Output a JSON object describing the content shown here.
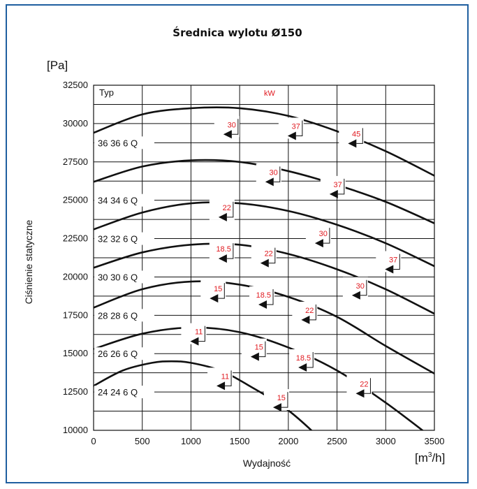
{
  "chart_data": {
    "type": "line",
    "title": "Średnica wylotu Ø150",
    "ylabel": "Ciśnienie statyczne",
    "xlabel": "Wydajność",
    "y_unit": "[Pa]",
    "x_unit_base": "[m",
    "x_unit_sup": "3",
    "x_unit_tail": "/h]",
    "legend_header": "Typ",
    "marker_header": "kW",
    "xlim": [
      0,
      3500
    ],
    "ylim": [
      10000,
      32500
    ],
    "xticks": [
      "0",
      "500",
      "1000",
      "1500",
      "2000",
      "2500",
      "3000",
      "3500"
    ],
    "yticks": [
      "10000",
      "12500",
      "15000",
      "17500",
      "20000",
      "22500",
      "25000",
      "27500",
      "30000",
      "32500"
    ],
    "grid": true,
    "colors": {
      "curve": "#111111",
      "power_label": "#e0191f",
      "frame": "#1f5fa0"
    },
    "series": [
      {
        "name": "36 36 6 Q",
        "x": [
          0,
          500,
          1000,
          1500,
          2000,
          2500,
          3000,
          3500
        ],
        "y": [
          29400,
          30600,
          31000,
          31000,
          30500,
          29500,
          28200,
          26600
        ],
        "markers": [
          {
            "kw": "30",
            "x": 1340,
            "y": 29300
          },
          {
            "kw": "37",
            "x": 2000,
            "y": 29200
          },
          {
            "kw": "45",
            "x": 2620,
            "y": 28700
          }
        ]
      },
      {
        "name": "34 34 6 Q",
        "x": [
          0,
          500,
          1000,
          1500,
          2000,
          2500,
          3000,
          3500
        ],
        "y": [
          26200,
          27200,
          27600,
          27500,
          26900,
          26000,
          24900,
          23500
        ],
        "markers": [
          {
            "kw": "30",
            "x": 1770,
            "y": 26200
          },
          {
            "kw": "37",
            "x": 2430,
            "y": 25400
          }
        ]
      },
      {
        "name": "32 32 6 Q",
        "x": [
          0,
          500,
          1000,
          1500,
          2000,
          2500,
          3000,
          3500
        ],
        "y": [
          23100,
          24200,
          24800,
          24800,
          24300,
          23400,
          22200,
          20700
        ],
        "markers": [
          {
            "kw": "22",
            "x": 1290,
            "y": 23900
          },
          {
            "kw": "30",
            "x": 2280,
            "y": 22200
          }
        ]
      },
      {
        "name": "30 30 6 Q",
        "x": [
          0,
          500,
          1000,
          1500,
          2000,
          2500,
          3000,
          3500
        ],
        "y": [
          20600,
          21600,
          22100,
          22100,
          21500,
          20500,
          19200,
          17600
        ],
        "markers": [
          {
            "kw": "18.5",
            "x": 1290,
            "y": 21200
          },
          {
            "kw": "22",
            "x": 1720,
            "y": 20900
          },
          {
            "kw": "37",
            "x": 3000,
            "y": 20500
          }
        ]
      },
      {
        "name": "28 28 6 Q",
        "x": [
          0,
          500,
          1000,
          1500,
          2000,
          2500,
          3000,
          3500
        ],
        "y": [
          18000,
          19200,
          19700,
          19500,
          18700,
          17400,
          15500,
          13700
        ],
        "markers": [
          {
            "kw": "15",
            "x": 1200,
            "y": 18600
          },
          {
            "kw": "18.5",
            "x": 1700,
            "y": 18200
          },
          {
            "kw": "30",
            "x": 2660,
            "y": 18800
          },
          {
            "kw": "22",
            "x": 2140,
            "y": 17200
          }
        ]
      },
      {
        "name": "26 26 6 Q",
        "x": [
          0,
          500,
          1000,
          1500,
          2000,
          2500,
          3000,
          3500
        ],
        "y": [
          15300,
          16300,
          16700,
          16400,
          15400,
          13900,
          11800,
          9400
        ],
        "markers": [
          {
            "kw": "11",
            "x": 1000,
            "y": 15800
          },
          {
            "kw": "15",
            "x": 1620,
            "y": 14800
          },
          {
            "kw": "18.5",
            "x": 2110,
            "y": 14100
          },
          {
            "kw": "22",
            "x": 2700,
            "y": 12400
          }
        ]
      },
      {
        "name": "24 24 6 Q",
        "x": [
          0,
          300,
          600,
          800,
          1000,
          1300,
          1600,
          2000,
          2400,
          2750
        ],
        "y": [
          12900,
          13900,
          14400,
          14500,
          14400,
          13900,
          12900,
          11300,
          9000,
          6600
        ],
        "markers": [
          {
            "kw": "11",
            "x": 1270,
            "y": 12900
          },
          {
            "kw": "15",
            "x": 1850,
            "y": 11500
          }
        ]
      }
    ]
  }
}
